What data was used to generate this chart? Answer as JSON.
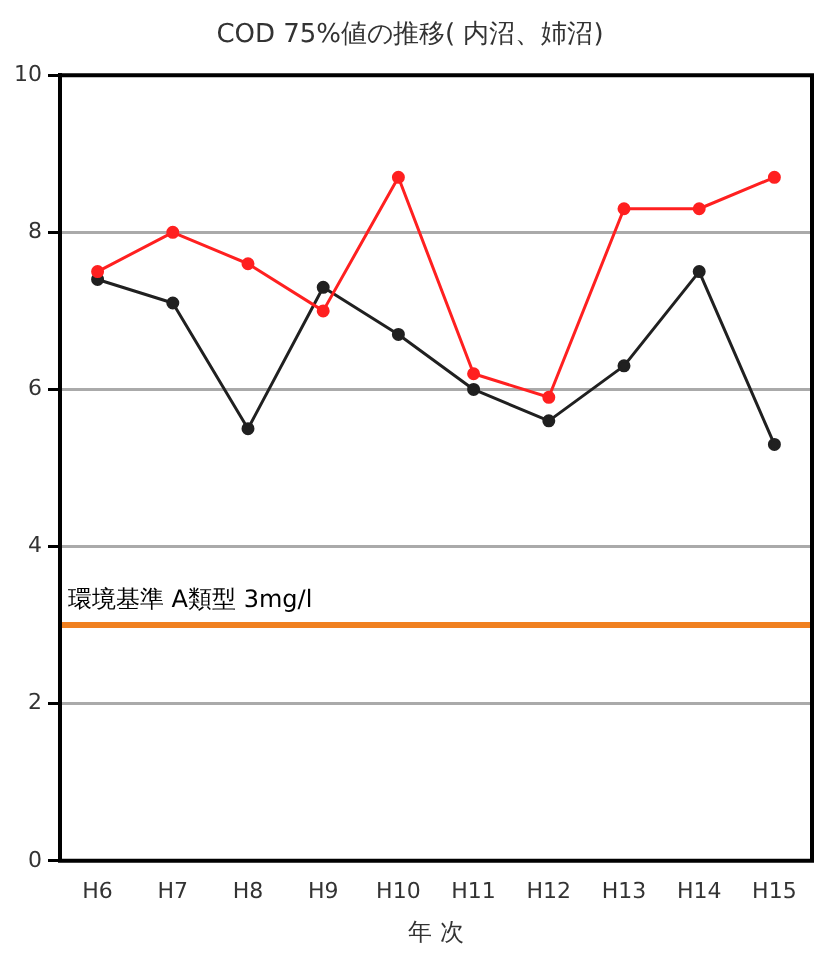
{
  "chart_data": {
    "type": "line",
    "title": "COD 75%値の推移( 内沼、姉沼)",
    "xlabel": "年 次",
    "categories": [
      "H6",
      "H7",
      "H8",
      "H9",
      "H10",
      "H11",
      "H12",
      "H13",
      "H14",
      "H15"
    ],
    "series": [
      {
        "color": "#ff2020",
        "values": [
          7.5,
          8.0,
          7.6,
          7.0,
          8.7,
          6.2,
          5.9,
          8.3,
          8.3,
          8.7
        ]
      },
      {
        "color": "#202020",
        "values": [
          7.4,
          7.1,
          5.5,
          7.3,
          6.7,
          6.0,
          5.6,
          6.3,
          7.5,
          5.3
        ]
      }
    ],
    "ylim": [
      0,
      10
    ],
    "yticks": [
      0,
      2,
      4,
      6,
      8,
      10
    ],
    "grid": "y",
    "legend": false,
    "marker": "circle",
    "line_style": "solid",
    "ref_lines": [
      {
        "axis": "y",
        "value": 3,
        "label": "環境基準 A類型 3mg/l",
        "color": "#f08020"
      }
    ]
  }
}
